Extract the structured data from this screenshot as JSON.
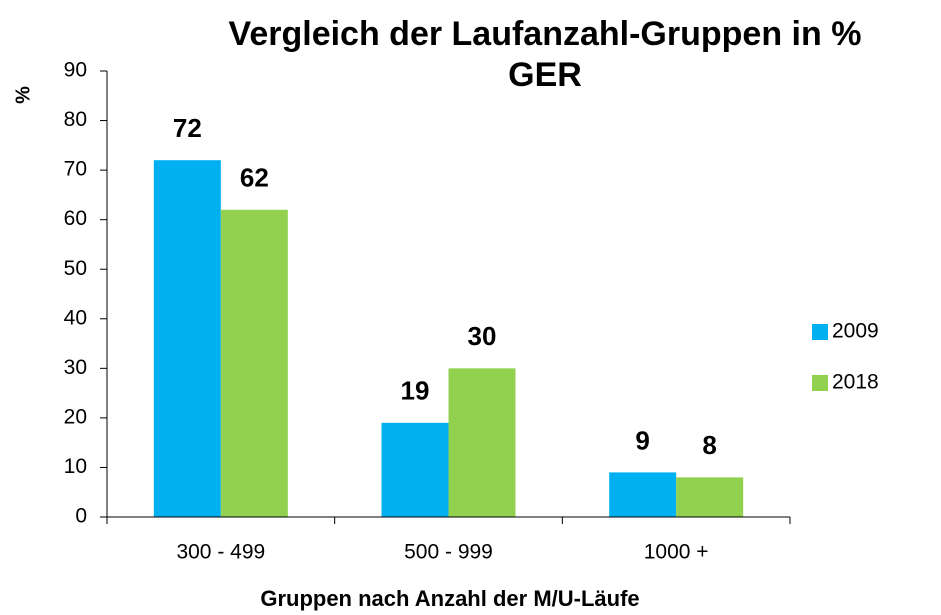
{
  "chart_data": {
    "type": "bar",
    "title": "Vergleich der Laufanzahl-Gruppen in %",
    "subtitle": "GER",
    "y_label": "%",
    "x_label": "Gruppen nach Anzahl der M/U-Läufe",
    "categories": [
      "300 - 499",
      "500 - 999",
      "1000 +"
    ],
    "series": [
      {
        "name": "2009",
        "color": "#00b0f0",
        "values": [
          72,
          19,
          9
        ]
      },
      {
        "name": "2018",
        "color": "#92d050",
        "values": [
          62,
          30,
          8
        ]
      }
    ],
    "ylim": [
      0,
      90
    ],
    "yticks": [
      0,
      10,
      20,
      30,
      40,
      50,
      60,
      70,
      80,
      90
    ],
    "legend": "right"
  }
}
